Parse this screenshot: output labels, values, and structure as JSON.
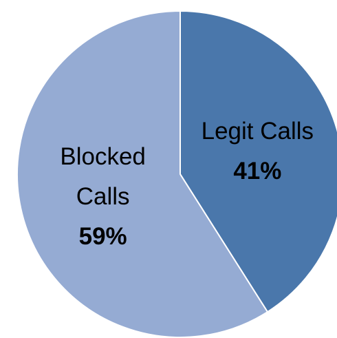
{
  "chart_data": {
    "type": "pie",
    "categories": [
      "Legit Calls",
      "Blocked Calls"
    ],
    "values": [
      41,
      59
    ],
    "value_labels": [
      "41%",
      "59%"
    ],
    "colors": [
      "#4a77ab",
      "#95abd3"
    ]
  }
}
